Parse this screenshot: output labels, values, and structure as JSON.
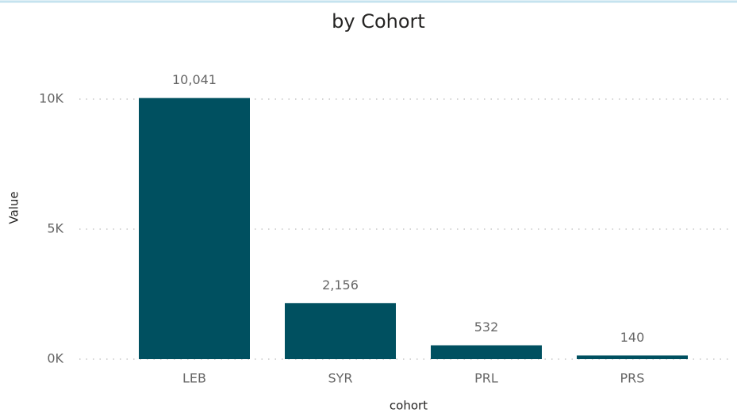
{
  "chart_data": {
    "type": "bar",
    "title": "by Cohort",
    "x_label": "cohort",
    "y_label": "Value",
    "categories": [
      "LEB",
      "SYR",
      "PRL",
      "PRS"
    ],
    "values": [
      10041,
      2156,
      532,
      140
    ],
    "value_labels": [
      "10,041",
      "2,156",
      "532",
      "140"
    ],
    "color": "#005060",
    "ylim": [
      0,
      10500
    ],
    "yticks": [
      {
        "value": 0,
        "label": "0K"
      },
      {
        "value": 5000,
        "label": "5K"
      },
      {
        "value": 10000,
        "label": "10K"
      }
    ],
    "grid": true
  }
}
